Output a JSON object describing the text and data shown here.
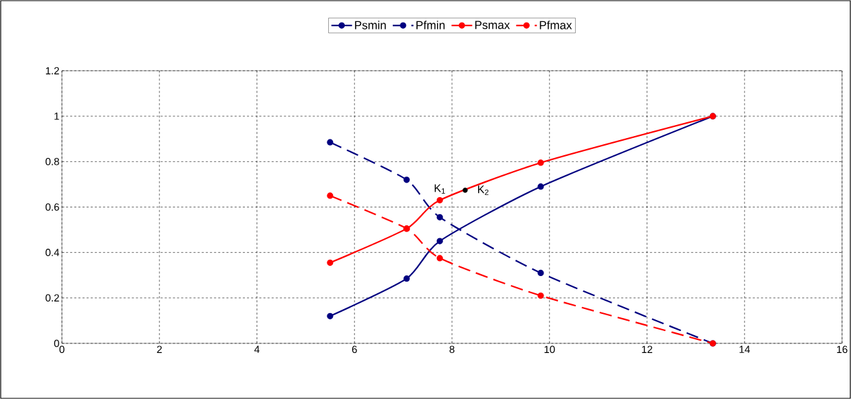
{
  "chart_data": {
    "type": "line",
    "xlim": [
      0,
      16
    ],
    "ylim": [
      0,
      1.2
    ],
    "xticks": [
      0,
      2,
      4,
      6,
      8,
      10,
      12,
      14,
      16
    ],
    "yticks": [
      0,
      0.2,
      0.4,
      0.6,
      0.8,
      1,
      1.2
    ],
    "grid": true,
    "legend": "top",
    "marker": "circle",
    "series": [
      {
        "name": "Psmin",
        "color": "#000080",
        "line_style": "solid",
        "x": [
          5.5,
          7.07,
          7.75,
          9.82,
          13.35
        ],
        "values": [
          0.12,
          0.285,
          0.45,
          0.69,
          1.0
        ]
      },
      {
        "name": "Pfmin",
        "color": "#000080",
        "line_style": "dashed",
        "x": [
          5.5,
          7.07,
          7.75,
          9.82,
          13.35
        ],
        "values": [
          0.885,
          0.72,
          0.555,
          0.31,
          0
        ]
      },
      {
        "name": "Psmax",
        "color": "#ff0000",
        "line_style": "solid",
        "x": [
          5.5,
          7.07,
          7.75,
          9.82,
          13.35
        ],
        "values": [
          0.355,
          0.505,
          0.63,
          0.795,
          1.0
        ]
      },
      {
        "name": "Pfmax",
        "color": "#ff0000",
        "line_style": "dashed",
        "x": [
          5.5,
          7.07,
          7.75,
          9.82,
          13.35
        ],
        "values": [
          0.65,
          0.505,
          0.375,
          0.21,
          0
        ]
      },
      {
        "type": "scatter",
        "color": "#000000",
        "x": [
          8.27
        ],
        "values": [
          0.674
        ]
      }
    ],
    "annotations": [
      {
        "text": "K$_{1}$",
        "x": 7.75,
        "y": 0.63
      },
      {
        "text": "K$_{2}$",
        "x": 8.27,
        "y": 0.674
      }
    ]
  }
}
